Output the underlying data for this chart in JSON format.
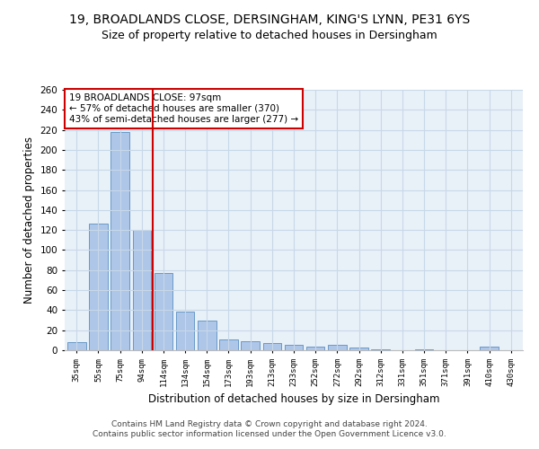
{
  "title1": "19, BROADLANDS CLOSE, DERSINGHAM, KING'S LYNN, PE31 6YS",
  "title2": "Size of property relative to detached houses in Dersingham",
  "xlabel": "Distribution of detached houses by size in Dersingham",
  "ylabel": "Number of detached properties",
  "footer1": "Contains HM Land Registry data © Crown copyright and database right 2024.",
  "footer2": "Contains public sector information licensed under the Open Government Licence v3.0.",
  "annotation_line1": "19 BROADLANDS CLOSE: 97sqm",
  "annotation_line2": "← 57% of detached houses are smaller (370)",
  "annotation_line3": "43% of semi-detached houses are larger (277) →",
  "bar_color": "#aec6e8",
  "bar_edge_color": "#5a8fc2",
  "vline_color": "#cc0000",
  "categories": [
    "35sqm",
    "55sqm",
    "75sqm",
    "94sqm",
    "114sqm",
    "134sqm",
    "154sqm",
    "173sqm",
    "193sqm",
    "213sqm",
    "233sqm",
    "252sqm",
    "272sqm",
    "292sqm",
    "312sqm",
    "331sqm",
    "351sqm",
    "371sqm",
    "391sqm",
    "410sqm",
    "430sqm"
  ],
  "values": [
    8,
    126,
    218,
    120,
    77,
    39,
    30,
    11,
    9,
    7,
    5,
    4,
    5,
    3,
    1,
    0,
    1,
    0,
    0,
    4,
    0
  ],
  "vline_index": 3.5,
  "ylim": [
    0,
    260
  ],
  "yticks": [
    0,
    20,
    40,
    60,
    80,
    100,
    120,
    140,
    160,
    180,
    200,
    220,
    240,
    260
  ],
  "grid_color": "#c8d8e8",
  "bg_color": "#e8f0f8",
  "title1_fontsize": 10,
  "title2_fontsize": 9,
  "xlabel_fontsize": 8.5,
  "ylabel_fontsize": 8.5,
  "annotation_fontsize": 7.5,
  "footer_fontsize": 6.5
}
